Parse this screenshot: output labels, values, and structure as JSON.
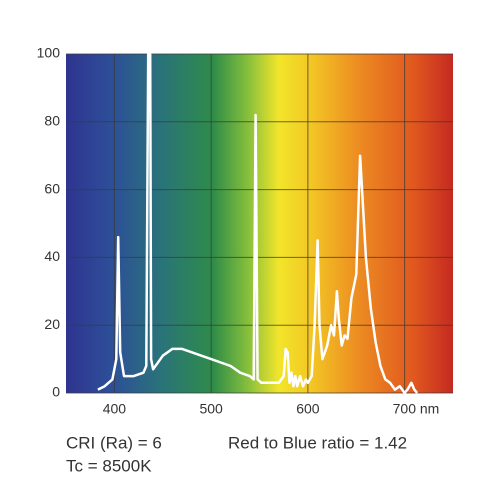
{
  "chart_data": {
    "type": "line",
    "x": [
      383,
      390,
      398,
      402,
      404,
      406,
      410,
      420,
      430,
      433,
      435,
      437,
      438,
      440,
      450,
      460,
      470,
      480,
      490,
      500,
      510,
      520,
      530,
      540,
      544,
      546,
      548,
      552,
      560,
      570,
      575,
      577,
      579,
      581,
      583,
      585,
      587,
      589,
      592,
      595,
      598,
      600,
      604,
      607,
      610,
      612,
      615,
      620,
      624,
      627,
      630,
      632,
      635,
      638,
      641,
      645,
      650,
      654,
      657,
      660,
      665,
      670,
      675,
      680,
      685,
      690,
      695,
      700,
      703,
      707,
      710,
      713
    ],
    "values": [
      1,
      2,
      4,
      10,
      46,
      12,
      5,
      5,
      6,
      8,
      100,
      100,
      10,
      7,
      11,
      13,
      13,
      12,
      11,
      10,
      9,
      8,
      6,
      5,
      4,
      82,
      4,
      3,
      3,
      3,
      5,
      13,
      12,
      3,
      6,
      2,
      5,
      2,
      5,
      2,
      4,
      3,
      5,
      20,
      45,
      20,
      10,
      14,
      20,
      17,
      30,
      22,
      14,
      17,
      16,
      28,
      35,
      70,
      55,
      40,
      25,
      15,
      8,
      4,
      3,
      1,
      2,
      0,
      1,
      3,
      1,
      0
    ],
    "color": "#ffffff",
    "xlim": [
      350,
      750
    ],
    "xticks": [
      400,
      500,
      600,
      {
        "value": 700,
        "label": "700 nm"
      }
    ],
    "ylim": [
      0,
      100
    ],
    "yticks": [
      0,
      20,
      40,
      60,
      80,
      100
    ],
    "grid": true,
    "annotations": [
      "CRI (Ra) = 6",
      "Red to Blue ratio = 1.42",
      "Tc = 8500K"
    ]
  }
}
